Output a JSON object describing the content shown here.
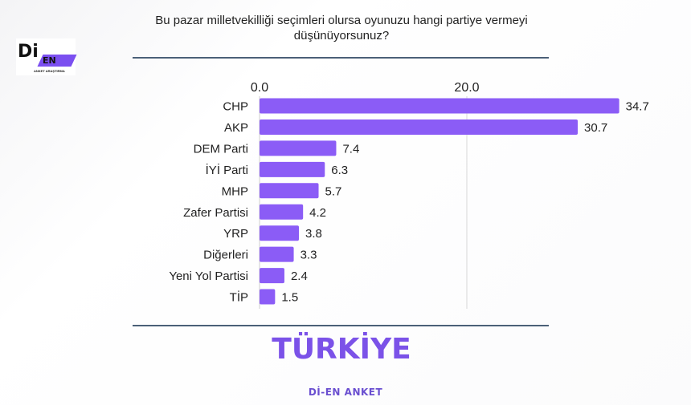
{
  "logo": {
    "main": "Di",
    "badge": "EN",
    "subtitle": "ANKET ARAŞTIRMA"
  },
  "chart_data": {
    "type": "bar",
    "orientation": "horizontal",
    "title": "Bu pazar milletvekilliği seçimleri olursa oyunuzu hangi partiye vermeyi düşünüyorsunuz?",
    "categories": [
      "CHP",
      "AKP",
      "DEM Parti",
      "İYİ Parti",
      "MHP",
      "Zafer Partisi",
      "YRP",
      "Diğerleri",
      "Yeni Yol Partisi",
      "TİP"
    ],
    "values": [
      34.7,
      30.7,
      7.4,
      6.3,
      5.7,
      4.2,
      3.8,
      3.3,
      2.4,
      1.5
    ],
    "value_labels": [
      "34.7",
      "30.7",
      "7.4",
      "6.3",
      "5.7",
      "4.2",
      "3.8",
      "3.3",
      "2.4",
      "1.5"
    ],
    "xticks": [
      0,
      20
    ],
    "xtick_labels": [
      "0.0",
      "20.0"
    ],
    "xlim": [
      0,
      40
    ],
    "xlabel": "",
    "ylabel": "",
    "grid": "vertical at 20",
    "bar_color": "#8b5cf6"
  },
  "region": "TÜRKİYE",
  "footer": "Dİ-EN ANKET"
}
